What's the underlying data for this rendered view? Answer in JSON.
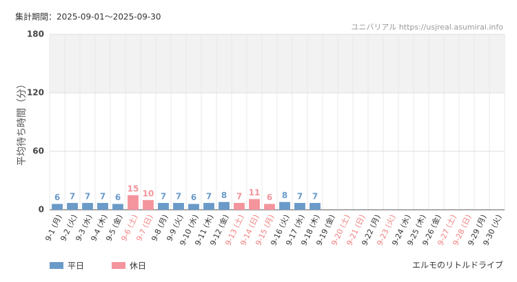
{
  "chart_data": {
    "type": "bar",
    "title": "集計期間：2025-09-01～2025-09-30",
    "source": "ユニバリアル https://usjreal.asumirai.info",
    "y_label": "平均待ち時間（分）",
    "footer": "エルモのリトルドライブ",
    "categories": [
      "9-1 (月)",
      "9-2 (火)",
      "9-3 (水)",
      "9-4 (木)",
      "9-5 (金)",
      "9-6 (土)",
      "9-7 (日)",
      "9-8 (月)",
      "9-9 (火)",
      "9-10 (水)",
      "9-11 (木)",
      "9-12 (金)",
      "9-13 (土)",
      "9-14 (日)",
      "9-15 (月)",
      "9-16 (火)",
      "9-17 (水)",
      "9-18 (木)",
      "9-19 (金)",
      "9-20 (土)",
      "9-21 (日)",
      "9-22 (月)",
      "9-23 (火)",
      "9-24 (水)",
      "9-25 (木)",
      "9-26 (金)",
      "9-27 (土)",
      "9-28 (日)",
      "9-29 (月)",
      "9-30 (火)"
    ],
    "category_colors": [
      "#333",
      "#333",
      "#333",
      "#333",
      "#333",
      "#f08080",
      "#f08080",
      "#333",
      "#333",
      "#333",
      "#333",
      "#333",
      "#f08080",
      "#f08080",
      "#f08080",
      "#333",
      "#333",
      "#333",
      "#333",
      "#f08080",
      "#f08080",
      "#333",
      "#f08080",
      "#333",
      "#333",
      "#333",
      "#f08080",
      "#f08080",
      "#333",
      "#333"
    ],
    "series": [
      {
        "name": "平日",
        "color": "#6a9ac8",
        "values": [
          6,
          7,
          7,
          7,
          6,
          null,
          null,
          7,
          7,
          6,
          7,
          8,
          null,
          null,
          null,
          8,
          7,
          7,
          null,
          null,
          null,
          null,
          null,
          null,
          null,
          null,
          null,
          null,
          null,
          null
        ]
      },
      {
        "name": "休日",
        "color": "#f4949c",
        "values": [
          null,
          null,
          null,
          null,
          null,
          15,
          10,
          null,
          null,
          null,
          null,
          null,
          7,
          11,
          6,
          null,
          null,
          null,
          null,
          null,
          null,
          null,
          null,
          null,
          null,
          null,
          null,
          null,
          null,
          null
        ]
      }
    ],
    "ylim": [
      0,
      180
    ],
    "yticks": [
      0,
      60,
      120,
      180
    ],
    "grid": true
  }
}
